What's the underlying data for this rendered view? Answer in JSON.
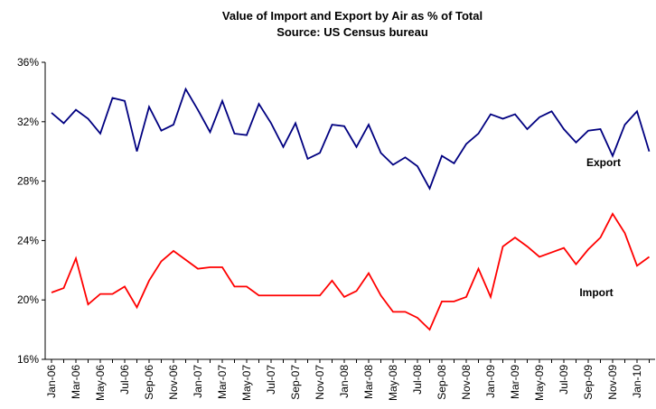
{
  "chart_data": {
    "type": "line",
    "title": "Value of Import and Export by Air as % of Total",
    "subtitle": "Source: US Census bureau",
    "categories": [
      "Jan-06",
      null,
      "Mar-06",
      null,
      "May-06",
      null,
      "Jul-06",
      null,
      "Sep-06",
      null,
      "Nov-06",
      null,
      "Jan-07",
      null,
      "Mar-07",
      null,
      "May-07",
      null,
      "Jul-07",
      null,
      "Sep-07",
      null,
      "Nov-07",
      null,
      "Jan-08",
      null,
      "Mar-08",
      null,
      "May-08",
      null,
      "Jul-08",
      null,
      "Sep-08",
      null,
      "Nov-08",
      null,
      "Jan-09",
      null,
      "Mar-09",
      null,
      "May-09",
      null,
      "Jul-09",
      null,
      "Sep-09",
      null,
      "Nov-09",
      null,
      "Jan-10",
      null
    ],
    "series": [
      {
        "name": "Export",
        "color": "#000080",
        "values": [
          32.6,
          31.9,
          32.8,
          32.2,
          31.2,
          33.6,
          33.4,
          30.0,
          33.0,
          31.4,
          31.8,
          34.2,
          32.8,
          31.3,
          33.4,
          31.2,
          31.1,
          33.2,
          31.9,
          30.3,
          31.9,
          29.5,
          29.9,
          31.8,
          31.7,
          30.3,
          31.8,
          29.9,
          29.1,
          29.6,
          29.0,
          27.5,
          29.7,
          29.2,
          30.5,
          31.2,
          32.5,
          32.2,
          32.5,
          31.5,
          32.3,
          32.7,
          31.5,
          30.6,
          31.4,
          31.5,
          29.7,
          31.8,
          32.7,
          30.0
        ]
      },
      {
        "name": "Import",
        "color": "#ff0000",
        "values": [
          20.5,
          20.8,
          22.8,
          19.7,
          20.4,
          20.4,
          20.9,
          19.5,
          21.3,
          22.6,
          23.3,
          22.7,
          22.1,
          22.2,
          22.2,
          20.9,
          20.9,
          20.3,
          20.3,
          20.3,
          20.3,
          20.3,
          20.3,
          21.3,
          20.2,
          20.6,
          21.8,
          20.3,
          19.2,
          19.2,
          18.8,
          18.0,
          19.9,
          19.9,
          20.2,
          22.1,
          20.2,
          23.6,
          24.2,
          23.6,
          22.9,
          23.2,
          23.5,
          22.4,
          23.4,
          24.2,
          25.8,
          24.5,
          22.3,
          22.9
        ]
      }
    ],
    "ylim": [
      16,
      36
    ],
    "yticks": [
      {
        "value": 16,
        "label": "16%"
      },
      {
        "value": 20,
        "label": "20%"
      },
      {
        "value": 24,
        "label": "24%"
      },
      {
        "value": 28,
        "label": "28%"
      },
      {
        "value": 32,
        "label": "32%"
      },
      {
        "value": 36,
        "label": "36%"
      }
    ],
    "grid": false
  }
}
